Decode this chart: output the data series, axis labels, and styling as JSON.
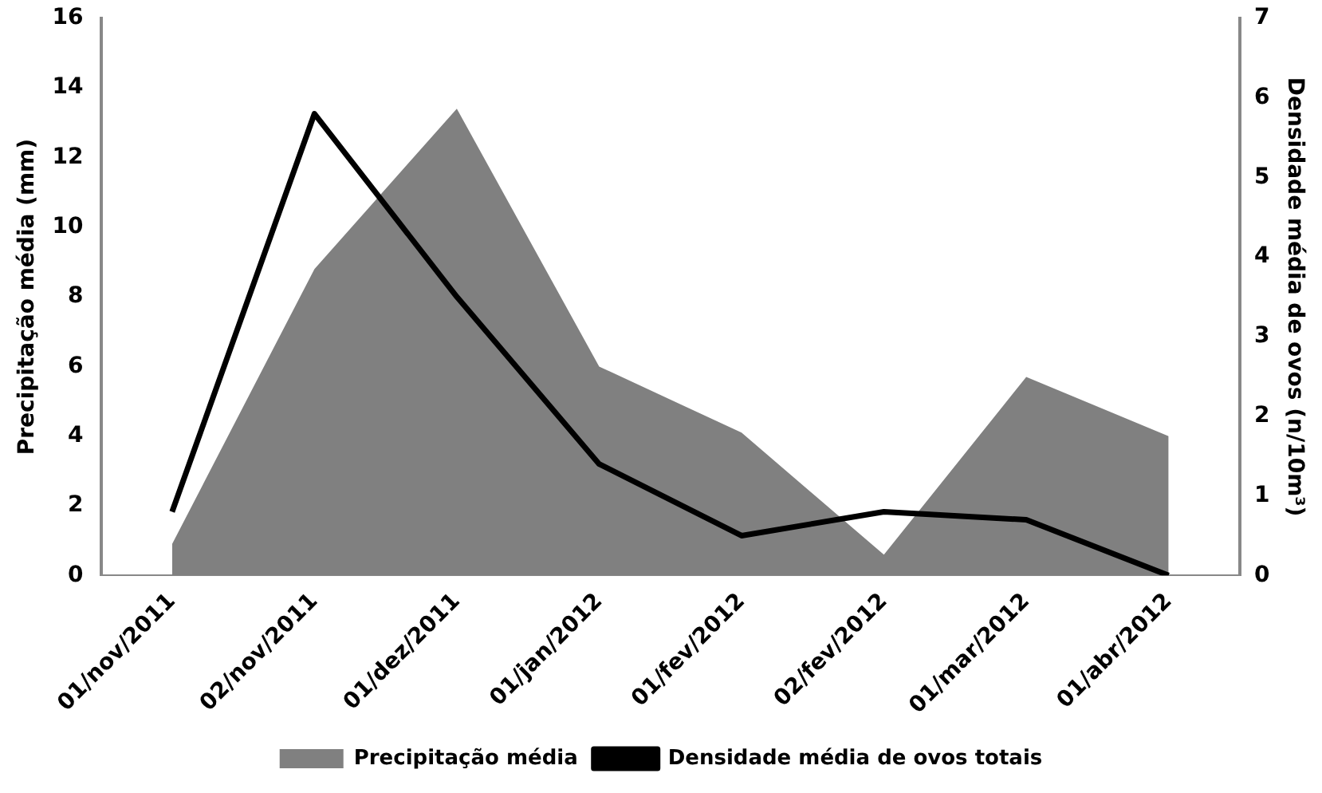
{
  "chart_data": {
    "type": "area",
    "categories": [
      "01/nov/2011",
      "02/nov/2011",
      "01/dez/2011",
      "01/jan/2012",
      "01/fev/2012",
      "02/fev/2012",
      "01/mar/2012",
      "01/abr/2012"
    ],
    "series": [
      {
        "name": "Precipitação média",
        "color": "#808080",
        "values": [
          0.9,
          8.8,
          13.4,
          6.0,
          4.1,
          0.6,
          5.7,
          4.0
        ]
      },
      {
        "name": "Densidade média de ovos totais",
        "type": "line",
        "axis": "y2",
        "color": "#000000",
        "values": [
          0.8,
          5.8,
          3.5,
          1.4,
          0.5,
          0.8,
          0.7,
          0
        ]
      }
    ],
    "ylabel": "Precipitação média (mm)",
    "y2label": "Densidade média de ovos (n/10m³)",
    "ylim": [
      0,
      16
    ],
    "yticks": [
      0,
      2,
      4,
      6,
      8,
      10,
      12,
      14,
      16
    ],
    "y2lim": [
      0,
      7
    ],
    "y2ticks": [
      0,
      1,
      2,
      3,
      4,
      5,
      6,
      7
    ],
    "grid": false,
    "legend": "bottom",
    "marker": "none",
    "line_style": "solid"
  }
}
